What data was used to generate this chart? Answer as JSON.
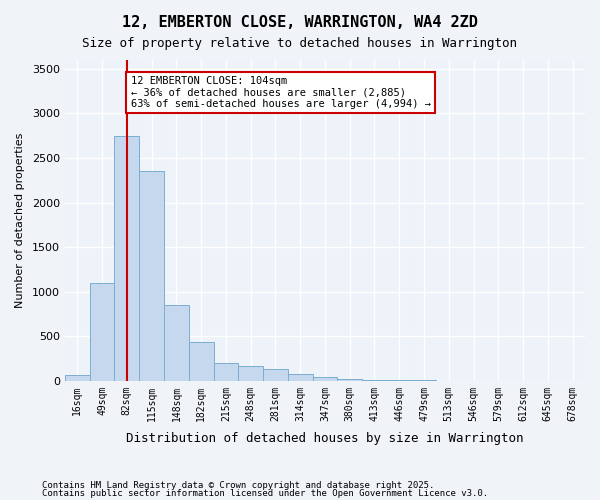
{
  "title": "12, EMBERTON CLOSE, WARRINGTON, WA4 2ZD",
  "subtitle": "Size of property relative to detached houses in Warrington",
  "xlabel": "Distribution of detached houses by size in Warrington",
  "ylabel": "Number of detached properties",
  "bar_color": "#c5d8ed",
  "bar_edge_color": "#7aaed0",
  "background_color": "#eef3f9",
  "grid_color": "#ffffff",
  "annotation_box_color": "#cc0000",
  "property_line_color": "#cc0000",
  "property_size": 104,
  "annotation_title": "12 EMBERTON CLOSE: 104sqm",
  "annotation_line1": "← 36% of detached houses are smaller (2,885)",
  "annotation_line2": "63% of semi-detached houses are larger (4,994) →",
  "categories": [
    "16sqm",
    "49sqm",
    "82sqm",
    "115sqm",
    "148sqm",
    "182sqm",
    "215sqm",
    "248sqm",
    "281sqm",
    "314sqm",
    "347sqm",
    "380sqm",
    "413sqm",
    "446sqm",
    "479sqm",
    "513sqm",
    "546sqm",
    "579sqm",
    "612sqm",
    "645sqm",
    "678sqm"
  ],
  "values": [
    60,
    1100,
    2750,
    2350,
    850,
    430,
    200,
    170,
    130,
    80,
    40,
    20,
    10,
    5,
    5,
    3,
    2,
    1,
    1,
    0,
    0
  ],
  "ylim": [
    0,
    3600
  ],
  "yticks": [
    0,
    500,
    1000,
    1500,
    2000,
    2500,
    3000,
    3500
  ],
  "footnote1": "Contains HM Land Registry data © Crown copyright and database right 2025.",
  "footnote2": "Contains public sector information licensed under the Open Government Licence v3.0.",
  "property_line_x": 2.0
}
